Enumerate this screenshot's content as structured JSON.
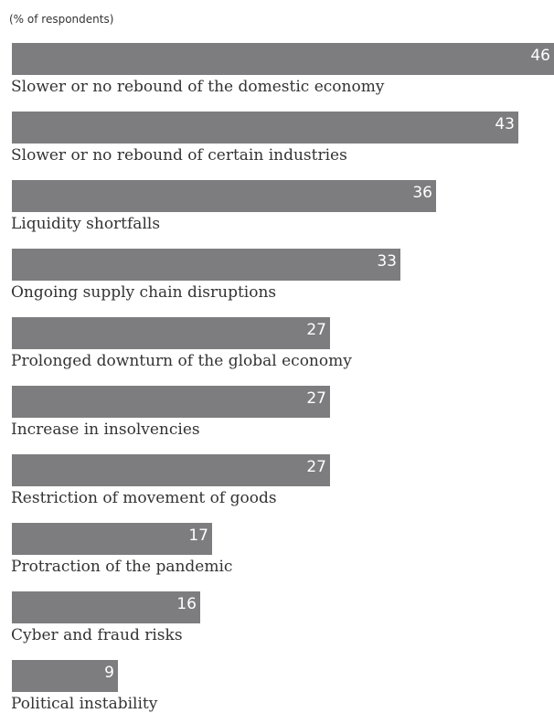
{
  "chart_data": {
    "type": "bar",
    "orientation": "horizontal",
    "unit_note": "(% of respondents)",
    "categories": [
      "Slower or no rebound of the domestic economy",
      "Slower or no rebound of certain industries",
      "Liquidity shortfalls",
      "Ongoing supply chain disruptions",
      "Prolonged downturn of the global economy",
      "Increase in insolvencies",
      "Restriction of movement of goods",
      "Protraction of the pandemic",
      "Cyber and fraud risks",
      "Political instability"
    ],
    "values": [
      46,
      43,
      36,
      33,
      27,
      27,
      27,
      17,
      16,
      9
    ],
    "xlim": [
      0,
      46
    ],
    "bar_color": "#7d7d7f",
    "value_label_color": "#ffffff"
  }
}
